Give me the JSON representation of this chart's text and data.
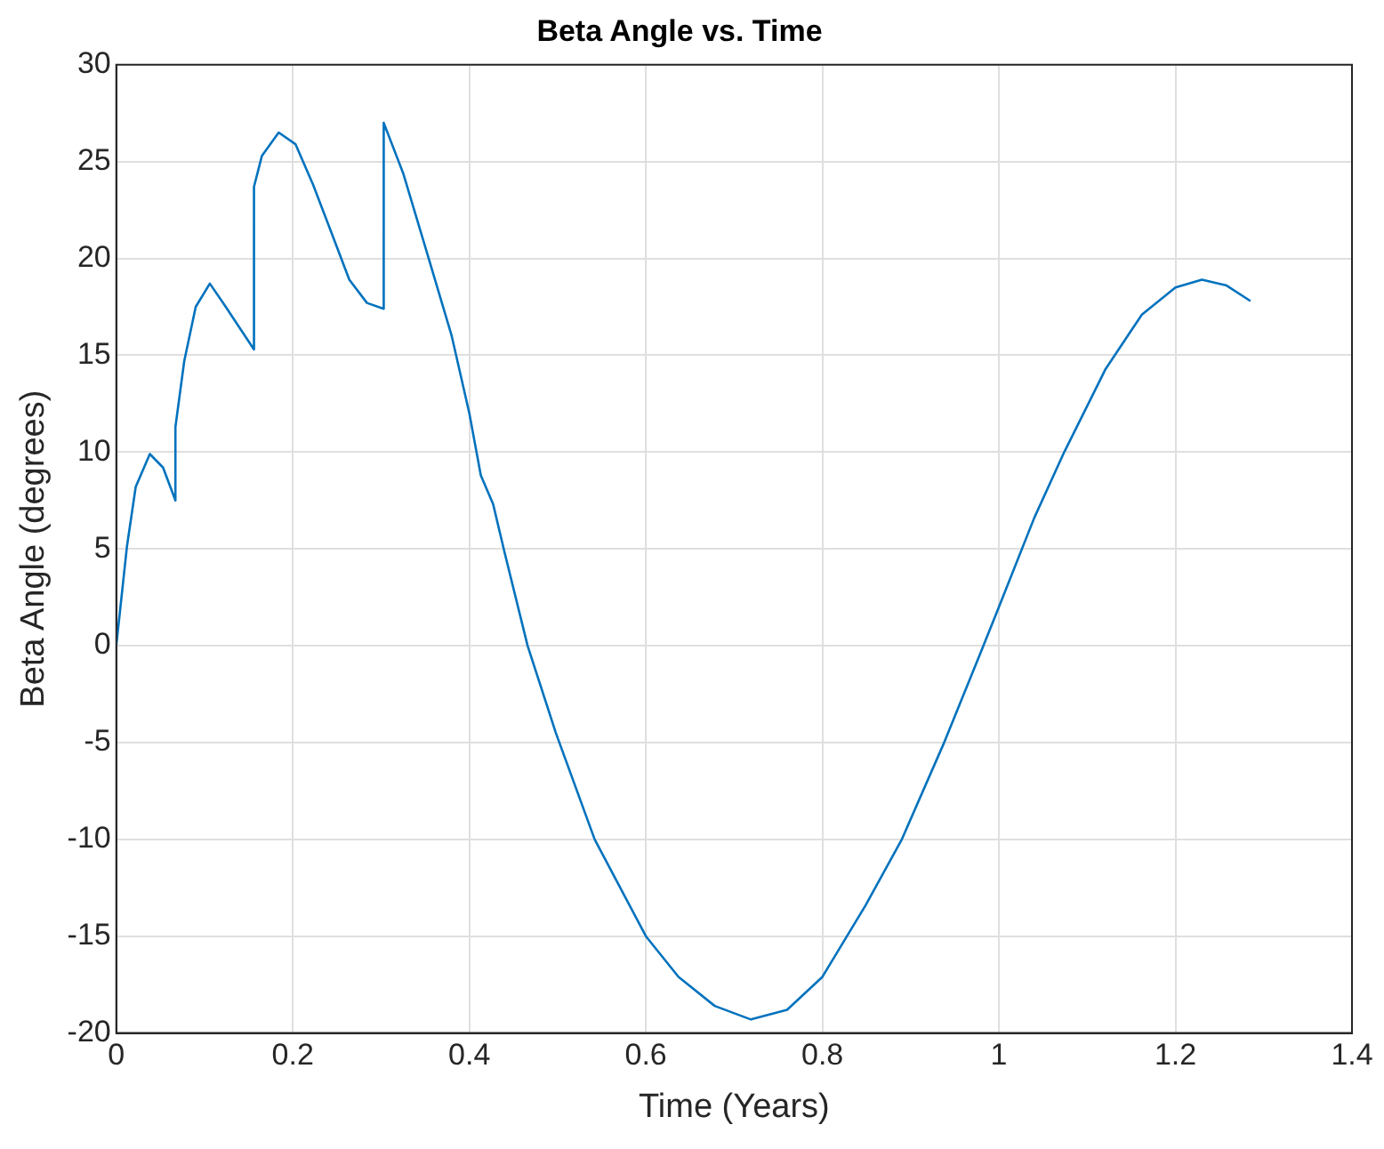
{
  "chart_data": {
    "type": "line",
    "title": "Beta Angle vs. Time",
    "xlabel": "Time (Years)",
    "ylabel": "Beta Angle (degrees)",
    "x": [
      0,
      0.012,
      0.022,
      0.038,
      0.053,
      0.067,
      0.067,
      0.077,
      0.09,
      0.106,
      0.124,
      0.156,
      0.156,
      0.165,
      0.184,
      0.203,
      0.223,
      0.244,
      0.264,
      0.284,
      0.303,
      0.303,
      0.325,
      0.352,
      0.38,
      0.4,
      0.413,
      0.427,
      0.44,
      0.466,
      0.498,
      0.542,
      0.6,
      0.637,
      0.678,
      0.719,
      0.76,
      0.8,
      0.849,
      0.89,
      0.937,
      0.978,
      1.0,
      1.04,
      1.074,
      1.121,
      1.162,
      1.2,
      1.23,
      1.258,
      1.285
    ],
    "series": [
      {
        "color": "#0072bd",
        "values": [
          0,
          5.1,
          8.2,
          9.9,
          9.2,
          7.5,
          11.3,
          14.7,
          17.5,
          18.7,
          17.5,
          15.3,
          23.7,
          25.3,
          26.5,
          25.9,
          23.8,
          21.3,
          18.9,
          17.7,
          17.4,
          27.0,
          24.4,
          20.3,
          16.0,
          12.0,
          8.8,
          7.3,
          4.8,
          0,
          -4.5,
          -10,
          -15,
          -17.1,
          -18.6,
          -19.3,
          -18.8,
          -17.1,
          -13.4,
          -10,
          -5.1,
          -0.5,
          2.0,
          6.6,
          10,
          14.3,
          17.1,
          18.5,
          18.9,
          18.6,
          17.8
        ]
      }
    ],
    "xlim": [
      0,
      1.4
    ],
    "xticks": [
      0,
      0.2,
      0.4,
      0.6,
      0.8,
      1,
      1.2,
      1.4
    ],
    "ylim": [
      -20,
      30
    ],
    "yticks": [
      -20,
      -15,
      -10,
      -5,
      0,
      5,
      10,
      15,
      20,
      25,
      30
    ],
    "grid": true,
    "legend": false,
    "marker": "none",
    "line_style": "solid"
  }
}
